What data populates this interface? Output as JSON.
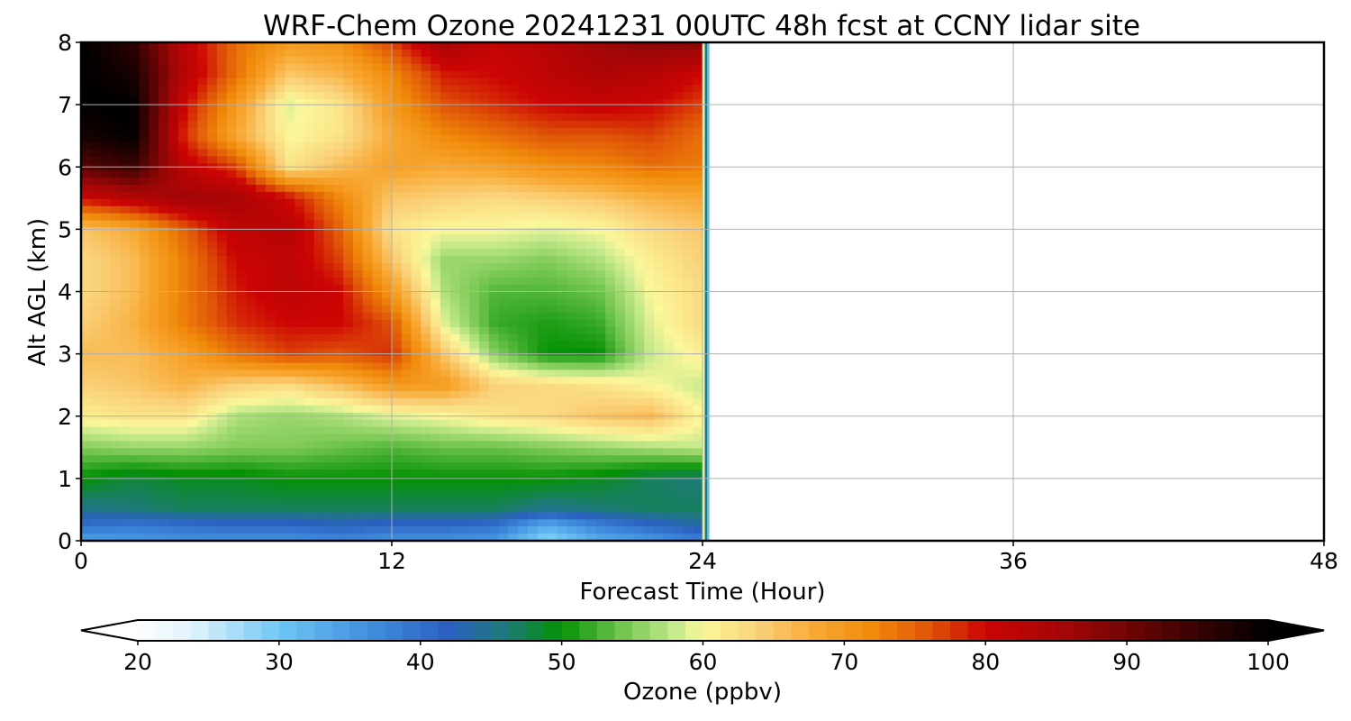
{
  "chart_data": {
    "type": "heatmap",
    "title": "WRF-Chem Ozone  20241231 00UTC 48h fcst at CCNY lidar site",
    "xlabel": "Forecast Time (Hour)",
    "ylabel": "Alt AGL (km)",
    "xlim": [
      0,
      48
    ],
    "ylim": [
      0,
      8
    ],
    "xticks": [
      0,
      12,
      24,
      36,
      48
    ],
    "yticks": [
      0,
      1,
      2,
      3,
      4,
      5,
      6,
      7,
      8
    ],
    "grid": true,
    "data_extent_hours": [
      0,
      24
    ],
    "x_hours": [
      0,
      2,
      4,
      6,
      8,
      10,
      12,
      14,
      16,
      18,
      20,
      22,
      24
    ],
    "y_km": [
      0,
      0.25,
      0.5,
      1,
      1.5,
      2,
      2.5,
      3,
      3.5,
      4,
      4.5,
      5,
      5.5,
      6,
      6.5,
      7,
      7.5,
      8
    ],
    "ozone_ppbv": [
      [
        34,
        35,
        36,
        36,
        36,
        37,
        36,
        36,
        35,
        28,
        33,
        35,
        38
      ],
      [
        40,
        39,
        40,
        41,
        41,
        42,
        41,
        41,
        40,
        33,
        38,
        41,
        44
      ],
      [
        45,
        46,
        47,
        47,
        47,
        47,
        47,
        47,
        47,
        45,
        46,
        47,
        47
      ],
      [
        50,
        48,
        49,
        49,
        50,
        50,
        50,
        50,
        50,
        50,
        49,
        47,
        46
      ],
      [
        55,
        56,
        56,
        55,
        55,
        54,
        53,
        54,
        54,
        55,
        56,
        57,
        58
      ],
      [
        61,
        62,
        62,
        57,
        56,
        57,
        59,
        60,
        62,
        63,
        65,
        66,
        60
      ],
      [
        64,
        65,
        67,
        64,
        63,
        66,
        70,
        70,
        64,
        63,
        62,
        60,
        58
      ],
      [
        66,
        66,
        69,
        74,
        77,
        76,
        78,
        65,
        55,
        50,
        50,
        58,
        61
      ],
      [
        64,
        67,
        73,
        78,
        80,
        80,
        76,
        59,
        52,
        51,
        52,
        59,
        63
      ],
      [
        63,
        66,
        73,
        79,
        82,
        80,
        70,
        57,
        53,
        53,
        54,
        60,
        63
      ],
      [
        63,
        66,
        73,
        80,
        82,
        77,
        65,
        56,
        56,
        55,
        57,
        61,
        64
      ],
      [
        65,
        68,
        75,
        82,
        83,
        75,
        62,
        60,
        60,
        59,
        60,
        63,
        65
      ],
      [
        80,
        83,
        86,
        85,
        80,
        72,
        65,
        64,
        63,
        64,
        65,
        67,
        68
      ],
      [
        92,
        95,
        82,
        77,
        62,
        66,
        69,
        68,
        69,
        71,
        72,
        74,
        73
      ],
      [
        98,
        100,
        78,
        68,
        60,
        62,
        68,
        72,
        74,
        76,
        76,
        77,
        74
      ],
      [
        100,
        100,
        80,
        70,
        59,
        62,
        70,
        76,
        78,
        80,
        81,
        80,
        77
      ],
      [
        100,
        98,
        83,
        74,
        65,
        67,
        72,
        79,
        80,
        82,
        84,
        83,
        80
      ],
      [
        100,
        96,
        82,
        74,
        70,
        71,
        77,
        85,
        81,
        83,
        86,
        88,
        88
      ]
    ],
    "colorbar": {
      "label": "Ozone  (ppbv)",
      "min": 20,
      "max": 100,
      "ticks": [
        "20",
        "30",
        "40",
        "50",
        "60",
        "70",
        "80",
        "90",
        "100"
      ],
      "extend": "both"
    },
    "colormap_stops": [
      {
        "v": 20,
        "c": "#ffffff"
      },
      {
        "v": 24,
        "c": "#dff2fc"
      },
      {
        "v": 30,
        "c": "#6ec6f5"
      },
      {
        "v": 36,
        "c": "#4392e0"
      },
      {
        "v": 42,
        "c": "#2a5fc0"
      },
      {
        "v": 46,
        "c": "#1e7a7c"
      },
      {
        "v": 50,
        "c": "#049104"
      },
      {
        "v": 54,
        "c": "#6bc24a"
      },
      {
        "v": 58,
        "c": "#c6e98c"
      },
      {
        "v": 60,
        "c": "#fbf79a"
      },
      {
        "v": 64,
        "c": "#fad078"
      },
      {
        "v": 68,
        "c": "#f8a833"
      },
      {
        "v": 72,
        "c": "#f08a0a"
      },
      {
        "v": 76,
        "c": "#e05508"
      },
      {
        "v": 80,
        "c": "#cc0404"
      },
      {
        "v": 86,
        "c": "#a00606"
      },
      {
        "v": 92,
        "c": "#5a0404"
      },
      {
        "v": 100,
        "c": "#000000"
      }
    ]
  }
}
